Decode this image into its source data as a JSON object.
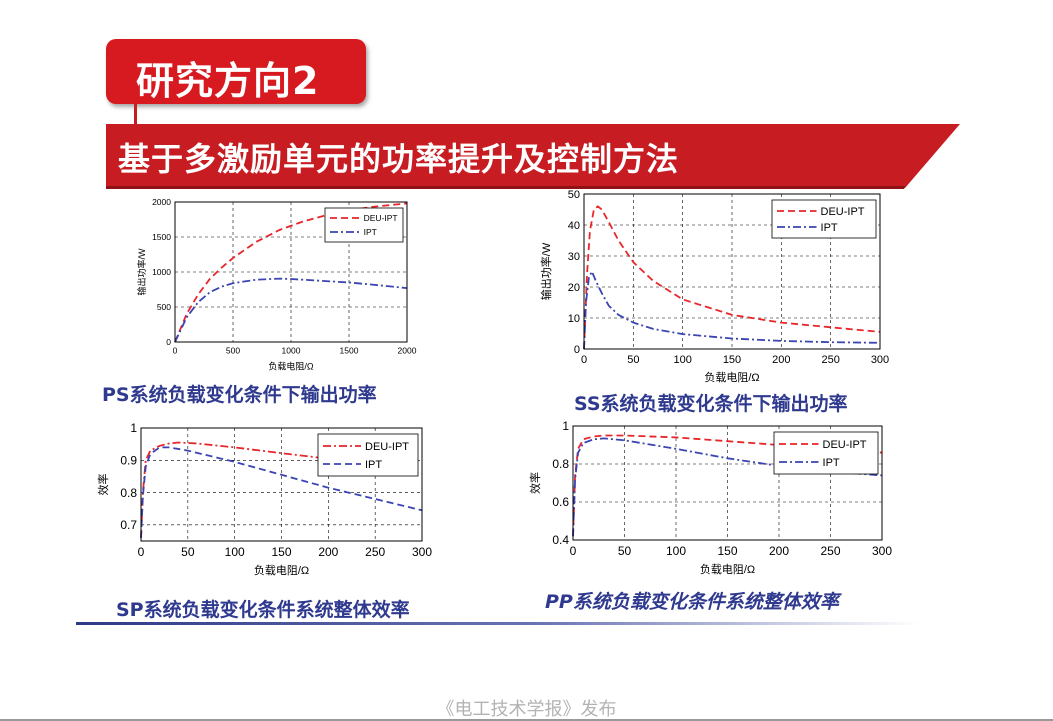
{
  "slide": {
    "title": "研究方向2",
    "banner": "基于多激励单元的功率提升及控制方法",
    "footer": "《电工技术学报》发布"
  },
  "colors": {
    "title_red": "#d71920",
    "banner_red": "#c71c22",
    "caption_blue": "#2f3a8f"
  },
  "chart_data": [
    {
      "id": "ps",
      "type": "line",
      "caption": "PS系统负载变化条件下输出功率",
      "xlabel": "负载电阻/Ω",
      "ylabel": "输出功率/W",
      "xlim": [
        0,
        2000
      ],
      "ylim": [
        0,
        2000
      ],
      "xticks": [
        0,
        500,
        1000,
        1500,
        2000
      ],
      "yticks": [
        0,
        500,
        1000,
        1500,
        2000
      ],
      "grid": true,
      "legend_position": "top-right",
      "series": [
        {
          "name": "DEU-IPT",
          "color": "#e8262a",
          "dash": "dashed",
          "x": [
            0,
            100,
            200,
            300,
            400,
            500,
            700,
            900,
            1100,
            1300,
            1500,
            1700,
            2000
          ],
          "y": [
            0,
            400,
            680,
            900,
            1060,
            1200,
            1430,
            1600,
            1720,
            1810,
            1880,
            1930,
            1980
          ]
        },
        {
          "name": "IPT",
          "color": "#3a44b3",
          "dash": "dashdot",
          "x": [
            0,
            100,
            200,
            300,
            400,
            500,
            700,
            900,
            1000,
            1100,
            1300,
            1500,
            1700,
            2000
          ],
          "y": [
            0,
            350,
            570,
            710,
            790,
            840,
            890,
            905,
            900,
            890,
            870,
            850,
            820,
            770
          ]
        }
      ]
    },
    {
      "id": "ss",
      "type": "line",
      "caption": "SS系统负载变化条件下输出功率",
      "xlabel": "负载电阻/Ω",
      "ylabel": "输出功率/W",
      "xlim": [
        0,
        300
      ],
      "ylim": [
        0,
        50
      ],
      "xticks": [
        0,
        50,
        100,
        150,
        200,
        250,
        300
      ],
      "yticks": [
        0,
        10,
        20,
        30,
        40,
        50
      ],
      "grid": true,
      "legend_position": "top-right",
      "series": [
        {
          "name": "DEU-IPT",
          "color": "#e8262a",
          "dash": "dashed",
          "x": [
            0,
            3,
            6,
            10,
            14,
            18,
            25,
            35,
            50,
            70,
            100,
            150,
            200,
            250,
            300
          ],
          "y": [
            0,
            24,
            38,
            45,
            46,
            45,
            41,
            35,
            28,
            22,
            16,
            11,
            8.5,
            7,
            5.5
          ]
        },
        {
          "name": "IPT",
          "color": "#3a44b3",
          "dash": "dashdot",
          "x": [
            0,
            2,
            5,
            8,
            12,
            18,
            25,
            35,
            50,
            70,
            100,
            150,
            200,
            250,
            300
          ],
          "y": [
            0,
            15,
            23,
            25,
            22,
            18,
            14,
            11,
            8.5,
            6.5,
            4.8,
            3.4,
            2.6,
            2.2,
            2.0
          ]
        }
      ]
    },
    {
      "id": "sp",
      "type": "line",
      "caption": "SP系统负载变化条件系统整体效率",
      "xlabel": "负载电阻/Ω",
      "ylabel": "效率",
      "xlim": [
        0,
        300
      ],
      "ylim": [
        0.65,
        1
      ],
      "xticks": [
        0,
        50,
        100,
        150,
        200,
        250,
        300
      ],
      "yticks": [
        0.7,
        0.8,
        0.9,
        1
      ],
      "ytick_labels": [
        "0.7",
        "0.8",
        "0.9",
        "1"
      ],
      "grid": true,
      "legend_position": "top-right",
      "series": [
        {
          "name": "DEU-IPT",
          "color": "#e8262a",
          "dash": "dashdot",
          "x": [
            0,
            2,
            5,
            10,
            20,
            30,
            40,
            60,
            100,
            150,
            200,
            250,
            300
          ],
          "y": [
            0.66,
            0.8,
            0.9,
            0.93,
            0.945,
            0.952,
            0.955,
            0.952,
            0.94,
            0.922,
            0.905,
            0.885,
            0.86
          ]
        },
        {
          "name": "IPT",
          "color": "#3a44b3",
          "dash": "dashed",
          "x": [
            0,
            2,
            5,
            10,
            20,
            30,
            50,
            100,
            150,
            200,
            250,
            300
          ],
          "y": [
            0.66,
            0.79,
            0.88,
            0.92,
            0.94,
            0.94,
            0.93,
            0.895,
            0.855,
            0.815,
            0.78,
            0.745
          ]
        }
      ]
    },
    {
      "id": "pp",
      "type": "line",
      "caption": "PP系统负载变化条件系统整体效率",
      "xlabel": "负载电阻/Ω",
      "ylabel": "效率",
      "xlim": [
        0,
        300
      ],
      "ylim": [
        0.4,
        1
      ],
      "xticks": [
        0,
        50,
        100,
        150,
        200,
        250,
        300
      ],
      "yticks": [
        0.4,
        0.6,
        0.8,
        1
      ],
      "ytick_labels": [
        "0.4",
        "0.6",
        "0.8",
        "1"
      ],
      "grid": true,
      "legend_position": "top-right",
      "series": [
        {
          "name": "DEU-IPT",
          "color": "#e8262a",
          "dash": "dashed",
          "x": [
            0,
            2,
            5,
            10,
            20,
            30,
            50,
            100,
            150,
            200,
            250,
            300
          ],
          "y": [
            0.42,
            0.74,
            0.88,
            0.93,
            0.945,
            0.95,
            0.95,
            0.94,
            0.92,
            0.9,
            0.88,
            0.86
          ]
        },
        {
          "name": "IPT",
          "color": "#3a44b3",
          "dash": "dashdot",
          "x": [
            0,
            2,
            5,
            10,
            20,
            30,
            50,
            100,
            150,
            200,
            250,
            300
          ],
          "y": [
            0.42,
            0.72,
            0.86,
            0.91,
            0.93,
            0.935,
            0.925,
            0.88,
            0.83,
            0.79,
            0.76,
            0.74
          ]
        }
      ]
    }
  ]
}
